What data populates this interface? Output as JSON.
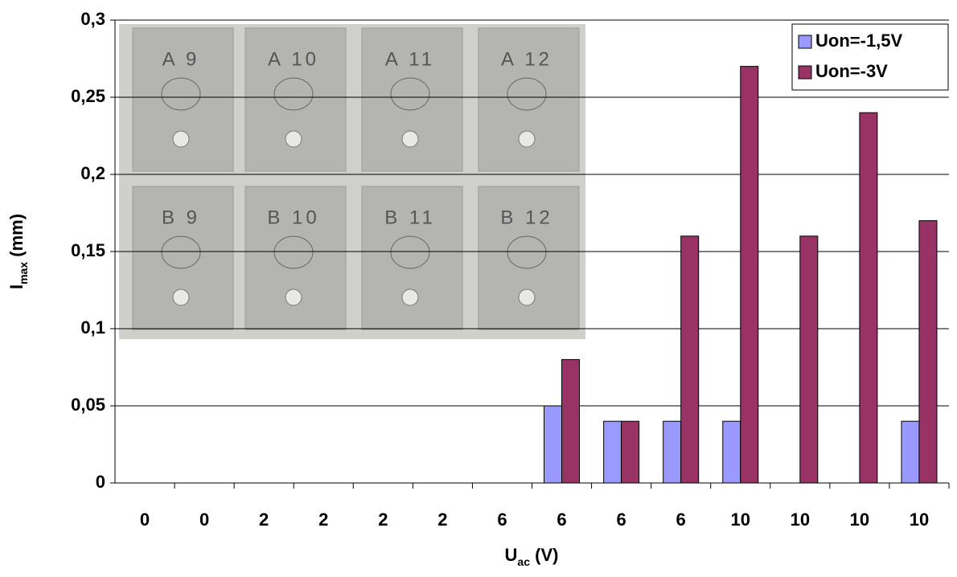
{
  "chart_data": {
    "type": "bar",
    "ylabel": [
      "I",
      "max",
      " (mm)"
    ],
    "xlabel": [
      "U",
      "ac",
      " (V)"
    ],
    "categories": [
      "0",
      "0",
      "2",
      "2",
      "2",
      "2",
      "6",
      "6",
      "6",
      "6",
      "10",
      "10",
      "10",
      "10"
    ],
    "series": [
      {
        "name": "Uon=-1,5V",
        "color": "#9999ff",
        "values": [
          0,
          0,
          0,
          0,
          0,
          0,
          0,
          0.05,
          0.04,
          0.04,
          0.04,
          0,
          0,
          0.04
        ]
      },
      {
        "name": "Uon=-3V",
        "color": "#993366",
        "values": [
          0,
          0,
          0,
          0,
          0,
          0,
          0,
          0.08,
          0.04,
          0.16,
          0.27,
          0.16,
          0.24,
          0.17
        ]
      }
    ],
    "ylim": [
      0,
      0.3
    ],
    "yticks": [
      0,
      {
        "value": 0.05,
        "label": "0,05"
      },
      {
        "value": 0.1,
        "label": "0,1"
      },
      {
        "value": 0.15,
        "label": "0,15"
      },
      {
        "value": 0.2,
        "label": "0,2"
      },
      {
        "value": 0.25,
        "label": "0,25"
      },
      {
        "value": 0.3,
        "label": "0,3"
      }
    ],
    "grid": true,
    "legend": "top-right",
    "annotations": [
      "A 9",
      "A 10",
      "A 11",
      "A 12",
      "B 9",
      "B 10",
      "B 11",
      "B 12"
    ]
  }
}
